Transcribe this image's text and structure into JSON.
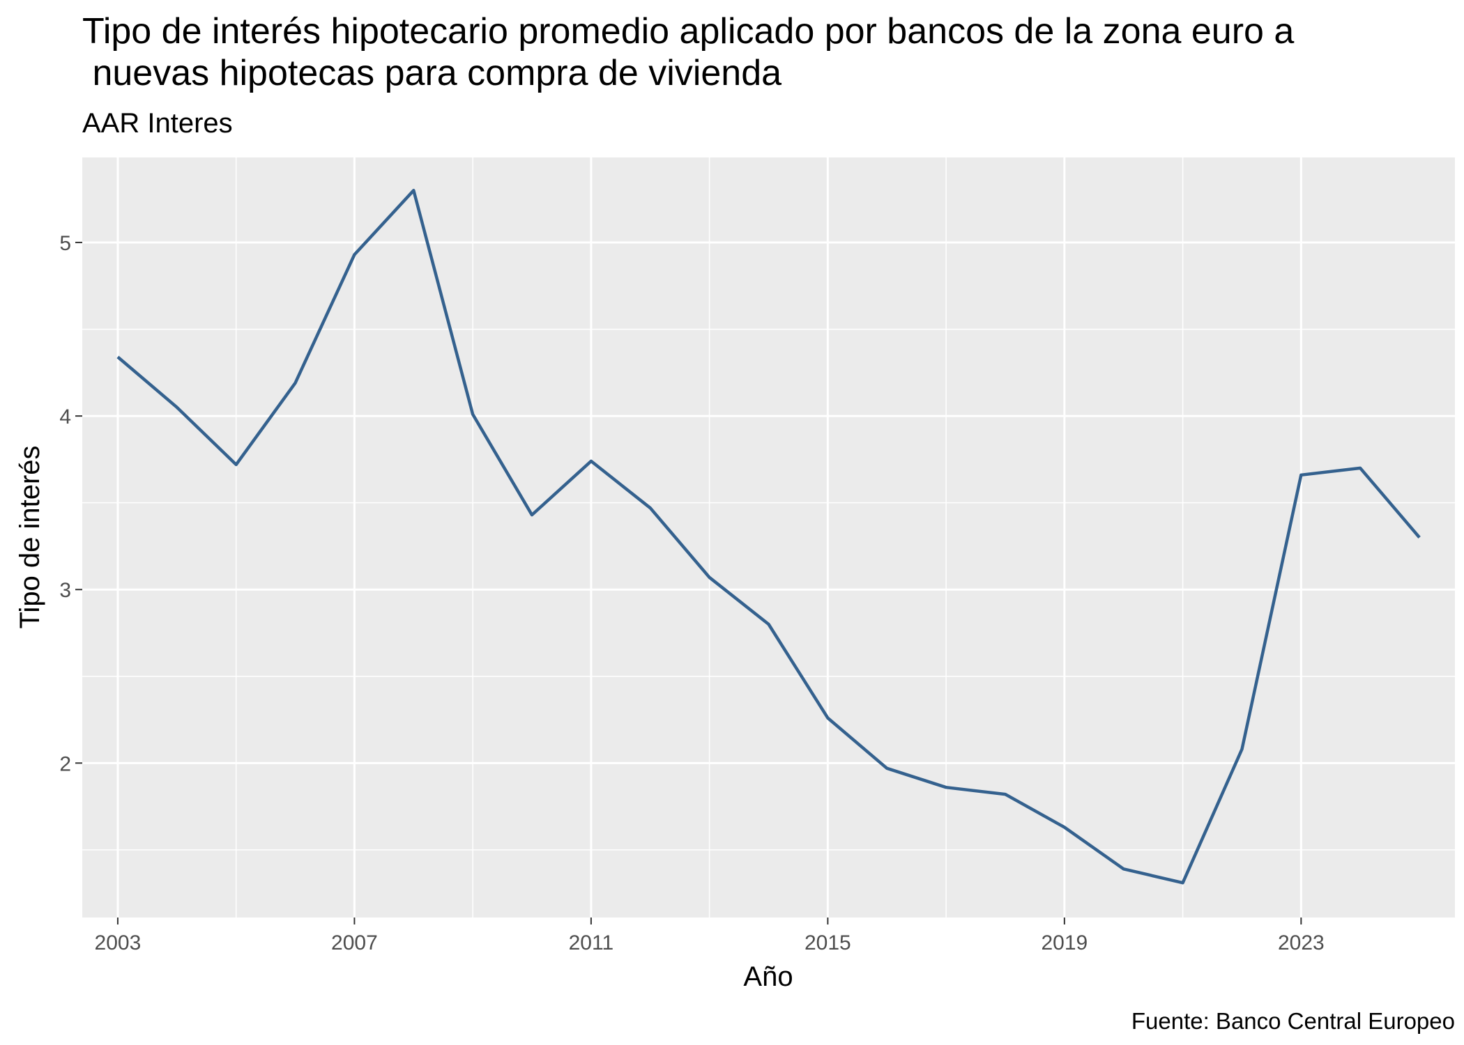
{
  "chart_data": {
    "type": "line",
    "title_lines": [
      "Tipo de interés hipotecario promedio aplicado por bancos de la zona euro a",
      " nuevas hipotecas para compra de vivienda"
    ],
    "subtitle": "AAR Interes",
    "xlabel": "Año",
    "ylabel": "Tipo de interés",
    "caption": "Fuente: Banco Central Europeo",
    "xlim": [
      2002.4,
      2025.6
    ],
    "ylim": [
      1.11,
      5.49
    ],
    "x_ticks": [
      2003,
      2007,
      2011,
      2015,
      2019,
      2023
    ],
    "y_ticks": [
      2,
      3,
      4,
      5
    ],
    "y_minor": [
      1.5,
      2.5,
      3.5,
      4.5
    ],
    "grid": true,
    "line_color": "#34618e",
    "panel_color": "#ebebeb",
    "series": [
      {
        "name": "AAR Interes",
        "x": [
          2003,
          2004,
          2005,
          2006,
          2007,
          2008,
          2009,
          2010,
          2011,
          2012,
          2013,
          2014,
          2015,
          2016,
          2017,
          2018,
          2019,
          2020,
          2021,
          2022,
          2023,
          2024,
          2025
        ],
        "values": [
          4.34,
          4.05,
          3.72,
          4.19,
          4.93,
          5.3,
          4.01,
          3.43,
          3.74,
          3.47,
          3.07,
          2.8,
          2.26,
          1.97,
          1.86,
          1.82,
          1.63,
          1.39,
          1.31,
          2.08,
          3.66,
          3.7,
          3.3
        ]
      }
    ]
  }
}
